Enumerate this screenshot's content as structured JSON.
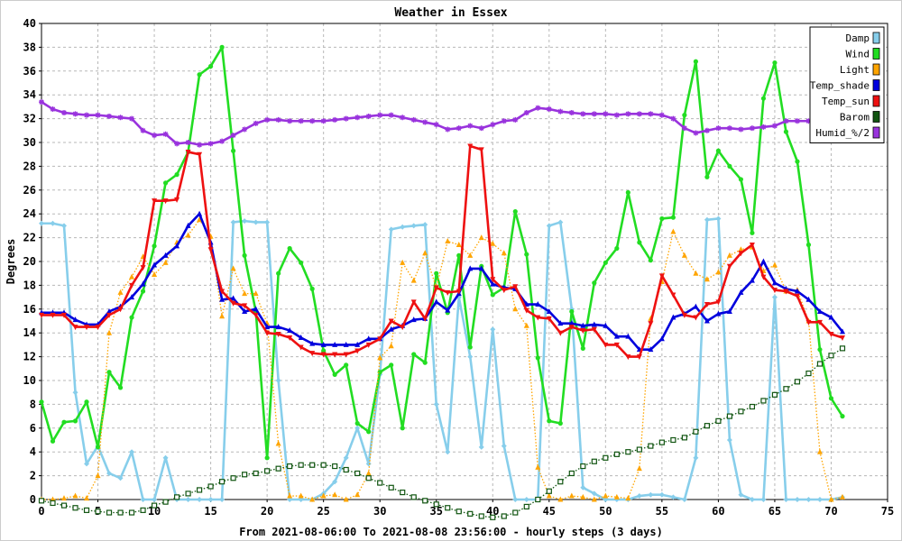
{
  "chart_data": {
    "type": "line",
    "title": "Weather in Essex",
    "ylabel": "Degrees",
    "xlabel": "From 2021-08-06:00 To 2021-08-08 23:56:00 - hourly steps (3 days)",
    "xlim": [
      0,
      75
    ],
    "ylim": [
      0,
      40
    ],
    "x_ticks": [
      0,
      5,
      10,
      15,
      20,
      25,
      30,
      35,
      40,
      45,
      50,
      55,
      60,
      65,
      70,
      75
    ],
    "y_ticks": [
      0,
      2,
      4,
      6,
      8,
      10,
      12,
      14,
      16,
      18,
      20,
      22,
      24,
      26,
      28,
      30,
      32,
      34,
      36,
      38,
      40
    ],
    "grid": true,
    "legend_position": "top-right",
    "x": [
      0,
      1,
      2,
      3,
      4,
      5,
      6,
      7,
      8,
      9,
      10,
      11,
      12,
      13,
      14,
      15,
      16,
      17,
      18,
      19,
      20,
      21,
      22,
      23,
      24,
      25,
      26,
      27,
      28,
      29,
      30,
      31,
      32,
      33,
      34,
      35,
      36,
      37,
      38,
      39,
      40,
      41,
      42,
      43,
      44,
      45,
      46,
      47,
      48,
      49,
      50,
      51,
      52,
      53,
      54,
      55,
      56,
      57,
      58,
      59,
      60,
      61,
      62,
      63,
      64,
      65,
      66,
      67,
      68,
      69,
      70,
      71
    ],
    "series": [
      {
        "name": "Damp",
        "color": "#87ceeb",
        "marker": "diamond",
        "style": "solid",
        "values": [
          23.2,
          23.2,
          23.0,
          9.0,
          3.0,
          4.5,
          2.2,
          1.8,
          4.0,
          0.0,
          0.0,
          3.5,
          0.0,
          0.0,
          0.0,
          0.0,
          0.0,
          23.3,
          23.4,
          23.3,
          23.3,
          10.0,
          0.0,
          0.0,
          0.0,
          0.5,
          1.5,
          3.5,
          6.0,
          3.0,
          10.5,
          22.7,
          22.9,
          23.0,
          23.1,
          8.0,
          4.0,
          17.0,
          12.0,
          4.4,
          14.3,
          4.5,
          0.0,
          0.0,
          0.0,
          23.0,
          23.3,
          16.0,
          1.0,
          0.5,
          0.0,
          0.0,
          0.0,
          0.3,
          0.4,
          0.4,
          0.2,
          0.0,
          3.5,
          23.5,
          23.6,
          5.0,
          0.4,
          0.0,
          0.0,
          17.0,
          0.0,
          0.0,
          0.0,
          0.0,
          0.0,
          0.2
        ]
      },
      {
        "name": "Wind",
        "color": "#22dd22",
        "marker": "circle",
        "style": "solid",
        "values": [
          8.2,
          4.9,
          6.5,
          6.6,
          8.2,
          4.4,
          10.7,
          9.4,
          15.3,
          17.5,
          21.3,
          26.6,
          27.3,
          29.2,
          35.7,
          36.4,
          38.0,
          29.3,
          20.5,
          15.8,
          3.5,
          19.0,
          21.1,
          19.9,
          17.7,
          12.5,
          10.5,
          11.3,
          6.4,
          5.7,
          10.7,
          11.3,
          6.0,
          12.2,
          11.5,
          19.0,
          15.7,
          20.5,
          12.8,
          19.6,
          17.2,
          17.8,
          24.2,
          20.6,
          11.9,
          6.6,
          6.4,
          15.8,
          12.7,
          18.2,
          19.9,
          21.1,
          25.8,
          21.6,
          20.1,
          23.6,
          23.7,
          32.3,
          36.8,
          27.1,
          29.3,
          28.0,
          26.9,
          22.4,
          33.7,
          36.7,
          30.9,
          28.4,
          21.4,
          12.6,
          8.5,
          7.0
        ]
      },
      {
        "name": "Light",
        "color": "#ffa500",
        "marker": "triangle",
        "style": "dotted",
        "values": [
          0.0,
          0.0,
          0.1,
          0.3,
          0.1,
          2.0,
          14.0,
          17.4,
          18.7,
          20.4,
          18.9,
          19.9,
          21.6,
          22.2,
          23.5,
          22.1,
          15.4,
          19.4,
          17.3,
          17.3,
          14.8,
          4.7,
          0.3,
          0.3,
          0.0,
          0.3,
          0.4,
          0.0,
          0.4,
          2.2,
          11.9,
          12.9,
          19.9,
          18.4,
          20.7,
          17.8,
          21.7,
          21.4,
          20.5,
          22.0,
          21.5,
          20.7,
          16.0,
          14.6,
          2.7,
          0.3,
          0.0,
          0.3,
          0.2,
          0.0,
          0.3,
          0.2,
          0.1,
          2.6,
          15.2,
          18.3,
          22.5,
          20.5,
          19.0,
          18.5,
          19.1,
          20.5,
          21.0,
          21.2,
          19.2,
          19.7,
          17.5,
          17.6,
          15.0,
          4.0,
          0.0,
          0.2
        ]
      },
      {
        "name": "Temp_shade",
        "color": "#0000dd",
        "marker": "triangle",
        "style": "solid",
        "values": [
          15.7,
          15.7,
          15.7,
          15.1,
          14.7,
          14.7,
          15.8,
          16.2,
          17.0,
          18.1,
          19.7,
          20.5,
          21.3,
          23.0,
          24.0,
          21.6,
          16.8,
          16.9,
          15.8,
          16.0,
          14.5,
          14.5,
          14.2,
          13.6,
          13.1,
          13.0,
          13.0,
          13.0,
          13.0,
          13.5,
          13.5,
          14.3,
          14.6,
          15.1,
          15.2,
          16.6,
          15.9,
          17.3,
          19.4,
          19.4,
          18.1,
          17.8,
          17.7,
          16.4,
          16.4,
          15.8,
          14.8,
          14.8,
          14.6,
          14.7,
          14.6,
          13.7,
          13.7,
          12.6,
          12.6,
          13.5,
          15.3,
          15.6,
          16.2,
          15.0,
          15.6,
          15.8,
          17.4,
          18.4,
          20.0,
          18.2,
          17.7,
          17.5,
          16.8,
          15.8,
          15.3,
          14.1
        ]
      },
      {
        "name": "Temp_sun",
        "color": "#ee1111",
        "marker": "triangle-down",
        "style": "solid",
        "values": [
          15.5,
          15.5,
          15.5,
          14.5,
          14.5,
          14.5,
          15.5,
          16.0,
          18.0,
          19.5,
          25.1,
          25.1,
          25.2,
          29.2,
          29.0,
          21.0,
          17.5,
          16.5,
          16.3,
          15.5,
          14.0,
          13.9,
          13.6,
          12.8,
          12.3,
          12.2,
          12.2,
          12.2,
          12.5,
          13.0,
          13.5,
          15.0,
          14.5,
          16.6,
          15.2,
          17.8,
          17.4,
          17.5,
          29.7,
          29.4,
          18.5,
          17.6,
          17.9,
          15.9,
          15.3,
          15.2,
          14.0,
          14.5,
          14.2,
          14.3,
          13.0,
          13.0,
          12.0,
          12.0,
          14.8,
          18.8,
          17.2,
          15.5,
          15.3,
          16.4,
          16.6,
          19.6,
          20.7,
          21.4,
          18.7,
          17.6,
          17.5,
          17.1,
          14.9,
          14.9,
          13.9,
          13.6
        ]
      },
      {
        "name": "Barom",
        "color": "#115511",
        "marker": "square",
        "style": "dotted",
        "values": [
          -0.1,
          -0.3,
          -0.5,
          -0.7,
          -0.9,
          -1.0,
          -1.1,
          -1.1,
          -1.1,
          -0.9,
          -0.5,
          -0.2,
          0.2,
          0.5,
          0.8,
          1.1,
          1.5,
          1.8,
          2.1,
          2.2,
          2.4,
          2.6,
          2.8,
          2.9,
          2.9,
          2.9,
          2.8,
          2.5,
          2.2,
          1.8,
          1.4,
          1.0,
          0.6,
          0.2,
          -0.1,
          -0.4,
          -0.7,
          -1.0,
          -1.2,
          -1.4,
          -1.5,
          -1.4,
          -1.1,
          -0.6,
          0.0,
          0.7,
          1.5,
          2.2,
          2.8,
          3.2,
          3.5,
          3.8,
          4.0,
          4.2,
          4.5,
          4.8,
          5.0,
          5.2,
          5.7,
          6.2,
          6.6,
          7.0,
          7.4,
          7.8,
          8.3,
          8.8,
          9.3,
          9.9,
          10.6,
          11.4,
          12.1,
          12.7
        ]
      },
      {
        "name": "Humid_%/2",
        "color": "#9933dd",
        "marker": "star",
        "style": "solid",
        "values": [
          33.4,
          32.8,
          32.5,
          32.4,
          32.3,
          32.3,
          32.2,
          32.1,
          32.0,
          31.0,
          30.6,
          30.7,
          29.9,
          30.0,
          29.8,
          29.9,
          30.1,
          30.6,
          31.1,
          31.6,
          31.9,
          31.9,
          31.8,
          31.8,
          31.8,
          31.8,
          31.9,
          32.0,
          32.1,
          32.2,
          32.3,
          32.3,
          32.1,
          31.9,
          31.7,
          31.5,
          31.1,
          31.2,
          31.4,
          31.2,
          31.5,
          31.8,
          31.9,
          32.5,
          32.9,
          32.8,
          32.6,
          32.5,
          32.4,
          32.4,
          32.4,
          32.3,
          32.4,
          32.4,
          32.4,
          32.3,
          32.0,
          31.2,
          30.8,
          31.0,
          31.2,
          31.2,
          31.1,
          31.2,
          31.3,
          31.4,
          31.8,
          31.8,
          31.8,
          31.8,
          31.8,
          31.8
        ]
      }
    ]
  }
}
